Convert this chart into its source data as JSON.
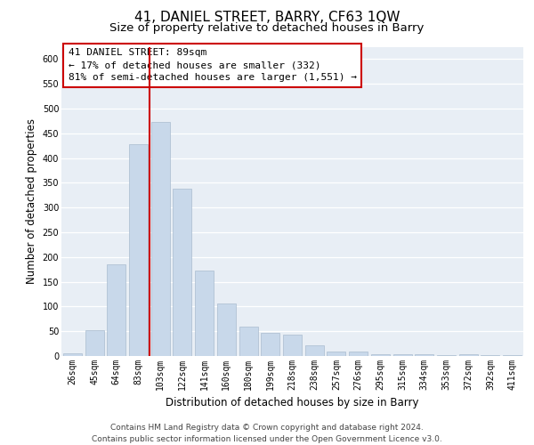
{
  "title": "41, DANIEL STREET, BARRY, CF63 1QW",
  "subtitle": "Size of property relative to detached houses in Barry",
  "xlabel": "Distribution of detached houses by size in Barry",
  "ylabel": "Number of detached properties",
  "categories": [
    "26sqm",
    "45sqm",
    "64sqm",
    "83sqm",
    "103sqm",
    "122sqm",
    "141sqm",
    "160sqm",
    "180sqm",
    "199sqm",
    "218sqm",
    "238sqm",
    "257sqm",
    "276sqm",
    "295sqm",
    "315sqm",
    "334sqm",
    "353sqm",
    "372sqm",
    "392sqm",
    "411sqm"
  ],
  "values": [
    5,
    52,
    185,
    428,
    473,
    338,
    172,
    107,
    60,
    46,
    43,
    22,
    9,
    9,
    4,
    3,
    4,
    2,
    3,
    2,
    2
  ],
  "bar_color": "#c8d8ea",
  "bar_edge_color": "#aabcce",
  "vline_x": 3.5,
  "vline_color": "#cc0000",
  "annotation_text": "41 DANIEL STREET: 89sqm\n← 17% of detached houses are smaller (332)\n81% of semi-detached houses are larger (1,551) →",
  "annotation_box_facecolor": "#ffffff",
  "annotation_box_edgecolor": "#cc0000",
  "ylim": [
    0,
    625
  ],
  "yticks": [
    0,
    50,
    100,
    150,
    200,
    250,
    300,
    350,
    400,
    450,
    500,
    550,
    600
  ],
  "plot_bg": "#e8eef5",
  "fig_bg": "#ffffff",
  "footer_line1": "Contains HM Land Registry data © Crown copyright and database right 2024.",
  "footer_line2": "Contains public sector information licensed under the Open Government Licence v3.0.",
  "title_fontsize": 11,
  "subtitle_fontsize": 9.5,
  "annotation_fontsize": 8,
  "tick_fontsize": 7,
  "label_fontsize": 8.5,
  "footer_fontsize": 6.5
}
